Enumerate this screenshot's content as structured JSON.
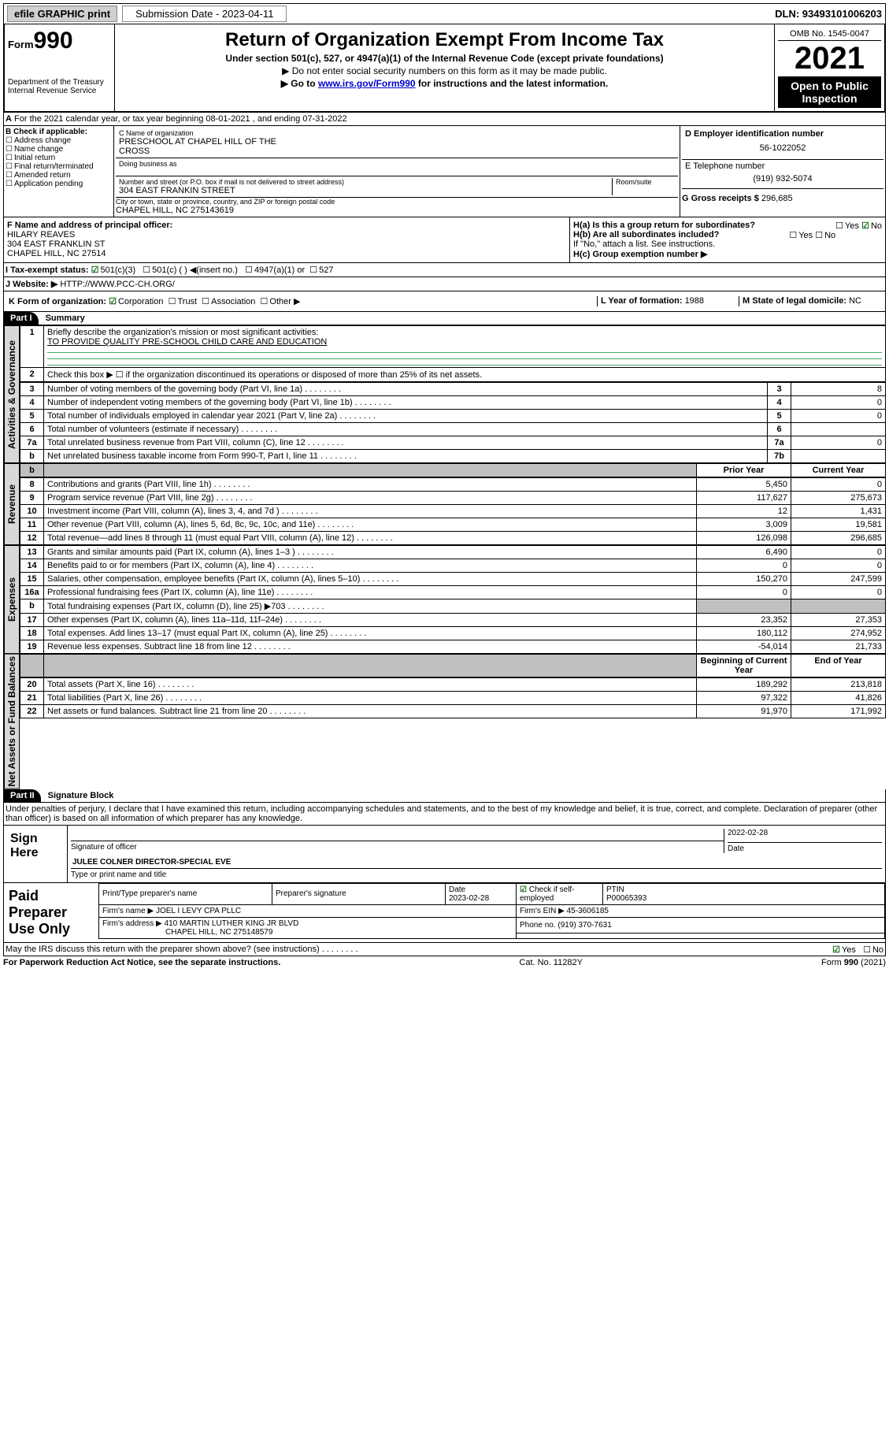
{
  "topbar": {
    "efile": "efile GRAPHIC print",
    "sub_label": "Submission Date - 2023-04-11",
    "dln": "DLN: 93493101006203"
  },
  "header": {
    "form_label": "Form",
    "form_num": "990",
    "title": "Return of Organization Exempt From Income Tax",
    "subtitle": "Under section 501(c), 527, or 4947(a)(1) of the Internal Revenue Code (except private foundations)",
    "note1": "▶ Do not enter social security numbers on this form as it may be made public.",
    "note2_pre": "▶ Go to ",
    "note2_link": "www.irs.gov/Form990",
    "note2_post": " for instructions and the latest information.",
    "dept": "Department of the Treasury",
    "irs": "Internal Revenue Service",
    "omb": "OMB No. 1545-0047",
    "year": "2021",
    "inspect1": "Open to Public",
    "inspect2": "Inspection"
  },
  "period": {
    "line_a": "For the 2021 calendar year, or tax year beginning 08-01-2021  , and ending 07-31-2022"
  },
  "box_b": {
    "label": "B Check if applicable:",
    "addr": "Address change",
    "name": "Name change",
    "init": "Initial return",
    "final": "Final return/terminated",
    "amend": "Amended return",
    "app": "Application pending"
  },
  "box_c": {
    "name_label": "C Name of organization",
    "org_name1": "PRESCHOOL AT CHAPEL HILL OF THE",
    "org_name2": "CROSS",
    "dba": "Doing business as",
    "addr_label": "Number and street (or P.O. box if mail is not delivered to street address)",
    "addr": "304 EAST FRANKIN STREET",
    "room_label": "Room/suite",
    "city_label": "City or town, state or province, country, and ZIP or foreign postal code",
    "city": "CHAPEL HILL, NC  275143619"
  },
  "box_d": {
    "label": "D Employer identification number",
    "ein": "56-1022052"
  },
  "box_e": {
    "label": "E Telephone number",
    "phone": "(919) 932-5074"
  },
  "box_g": {
    "label": "G Gross receipts $ ",
    "amount": "296,685"
  },
  "box_f": {
    "label": "F Name and address of principal officer:",
    "name": "HILARY REAVES",
    "addr": "304 EAST FRANKLIN ST",
    "city": "CHAPEL HILL, NC  27514"
  },
  "box_h": {
    "ha": "H(a)  Is this a group return for subordinates?",
    "hb": "H(b)  Are all subordinates included?",
    "hb_note": "If \"No,\" attach a list. See instructions.",
    "hc": "H(c)  Group exemption number ▶",
    "yes": "Yes",
    "no": "No"
  },
  "tax_status": {
    "label_i": "I  Tax-exempt status:",
    "c3": "501(c)(3)",
    "c_other": "501(c) (  ) ◀(insert no.)",
    "a1": "4947(a)(1) or",
    "s527": "527"
  },
  "website": {
    "label": "J  Website: ▶",
    "url": "HTTP://WWW.PCC-CH.ORG/"
  },
  "box_k": {
    "label": "K Form of organization:",
    "corp": "Corporation",
    "trust": "Trust",
    "assoc": "Association",
    "other": "Other ▶"
  },
  "box_l": {
    "label": "L Year of formation: ",
    "year": "1988"
  },
  "box_m": {
    "label": "M State of legal domicile: ",
    "state": "NC"
  },
  "part1": {
    "header": "Part I",
    "title": "Summary",
    "q1": "Briefly describe the organization's mission or most significant activities:",
    "q1_ans": "TO PROVIDE QUALITY PRE-SCHOOL CHILD CARE AND EDUCATION",
    "q2": "Check this box ▶ ☐ if the organization discontinued its operations or disposed of more than 25% of its net assets.",
    "vert1": "Activities & Governance",
    "vert2": "Revenue",
    "vert3": "Expenses",
    "vert4": "Net Assets or Fund Balances",
    "prior": "Prior Year",
    "current": "Current Year",
    "begin": "Beginning of Current Year",
    "end": "End of Year",
    "rows_top": [
      {
        "n": "3",
        "d": "Number of voting members of the governing body (Part VI, line 1a)",
        "box": "3",
        "v": "8"
      },
      {
        "n": "4",
        "d": "Number of independent voting members of the governing body (Part VI, line 1b)",
        "box": "4",
        "v": "0"
      },
      {
        "n": "5",
        "d": "Total number of individuals employed in calendar year 2021 (Part V, line 2a)",
        "box": "5",
        "v": "0"
      },
      {
        "n": "6",
        "d": "Total number of volunteers (estimate if necessary)",
        "box": "6",
        "v": ""
      },
      {
        "n": "7a",
        "d": "Total unrelated business revenue from Part VIII, column (C), line 12",
        "box": "7a",
        "v": "0"
      },
      {
        "n": "b",
        "d": "Net unrelated business taxable income from Form 990-T, Part I, line 11",
        "box": "7b",
        "v": ""
      }
    ],
    "rows_rev": [
      {
        "n": "8",
        "d": "Contributions and grants (Part VIII, line 1h)",
        "p": "5,450",
        "c": "0"
      },
      {
        "n": "9",
        "d": "Program service revenue (Part VIII, line 2g)",
        "p": "117,627",
        "c": "275,673"
      },
      {
        "n": "10",
        "d": "Investment income (Part VIII, column (A), lines 3, 4, and 7d )",
        "p": "12",
        "c": "1,431"
      },
      {
        "n": "11",
        "d": "Other revenue (Part VIII, column (A), lines 5, 6d, 8c, 9c, 10c, and 11e)",
        "p": "3,009",
        "c": "19,581"
      },
      {
        "n": "12",
        "d": "Total revenue—add lines 8 through 11 (must equal Part VIII, column (A), line 12)",
        "p": "126,098",
        "c": "296,685"
      }
    ],
    "rows_exp": [
      {
        "n": "13",
        "d": "Grants and similar amounts paid (Part IX, column (A), lines 1–3 )",
        "p": "6,490",
        "c": "0"
      },
      {
        "n": "14",
        "d": "Benefits paid to or for members (Part IX, column (A), line 4)",
        "p": "0",
        "c": "0"
      },
      {
        "n": "15",
        "d": "Salaries, other compensation, employee benefits (Part IX, column (A), lines 5–10)",
        "p": "150,270",
        "c": "247,599"
      },
      {
        "n": "16a",
        "d": "Professional fundraising fees (Part IX, column (A), line 11e)",
        "p": "0",
        "c": "0"
      },
      {
        "n": "b",
        "d": "Total fundraising expenses (Part IX, column (D), line 25) ▶703",
        "p": "grey",
        "c": "grey"
      },
      {
        "n": "17",
        "d": "Other expenses (Part IX, column (A), lines 11a–11d, 11f–24e)",
        "p": "23,352",
        "c": "27,353"
      },
      {
        "n": "18",
        "d": "Total expenses. Add lines 13–17 (must equal Part IX, column (A), line 25)",
        "p": "180,112",
        "c": "274,952"
      },
      {
        "n": "19",
        "d": "Revenue less expenses. Subtract line 18 from line 12",
        "p": "-54,014",
        "c": "21,733"
      }
    ],
    "rows_net": [
      {
        "n": "20",
        "d": "Total assets (Part X, line 16)",
        "p": "189,292",
        "c": "213,818"
      },
      {
        "n": "21",
        "d": "Total liabilities (Part X, line 26)",
        "p": "97,322",
        "c": "41,826"
      },
      {
        "n": "22",
        "d": "Net assets or fund balances. Subtract line 21 from line 20",
        "p": "91,970",
        "c": "171,992"
      }
    ]
  },
  "part2": {
    "header": "Part II",
    "title": "Signature Block",
    "decl": "Under penalties of perjury, I declare that I have examined this return, including accompanying schedules and statements, and to the best of my knowledge and belief, it is true, correct, and complete. Declaration of preparer (other than officer) is based on all information of which preparer has any knowledge.",
    "sign_here": "Sign Here",
    "sig_officer": "Signature of officer",
    "date": "Date",
    "date_val": "2022-02-28",
    "name_title": "JULEE COLNER  DIRECTOR-SPECIAL EVE",
    "type_name": "Type or print name and title",
    "paid": "Paid Preparer Use Only",
    "prep_name_label": "Print/Type preparer's name",
    "prep_sig_label": "Preparer's signature",
    "prep_date_label": "Date",
    "prep_date": "2023-02-28",
    "prep_check": "Check ☑ if self-employed",
    "ptin_label": "PTIN",
    "ptin": "P00065393",
    "firm_name_label": "Firm's name   ▶",
    "firm_name": "JOEL I LEVY CPA PLLC",
    "firm_ein_label": "Firm's EIN ▶",
    "firm_ein": "45-3606185",
    "firm_addr_label": "Firm's address ▶",
    "firm_addr1": "410 MARTIN LUTHER KING JR BLVD",
    "firm_addr2": "CHAPEL HILL, NC  275148579",
    "firm_phone_label": "Phone no. ",
    "firm_phone": "(919) 370-7631",
    "discuss": "May the IRS discuss this return with the preparer shown above? (see instructions)",
    "yes": "Yes",
    "no": "No"
  },
  "footer": {
    "left": "For Paperwork Reduction Act Notice, see the separate instructions.",
    "center": "Cat. No. 11282Y",
    "right": "Form 990 (2021)"
  }
}
